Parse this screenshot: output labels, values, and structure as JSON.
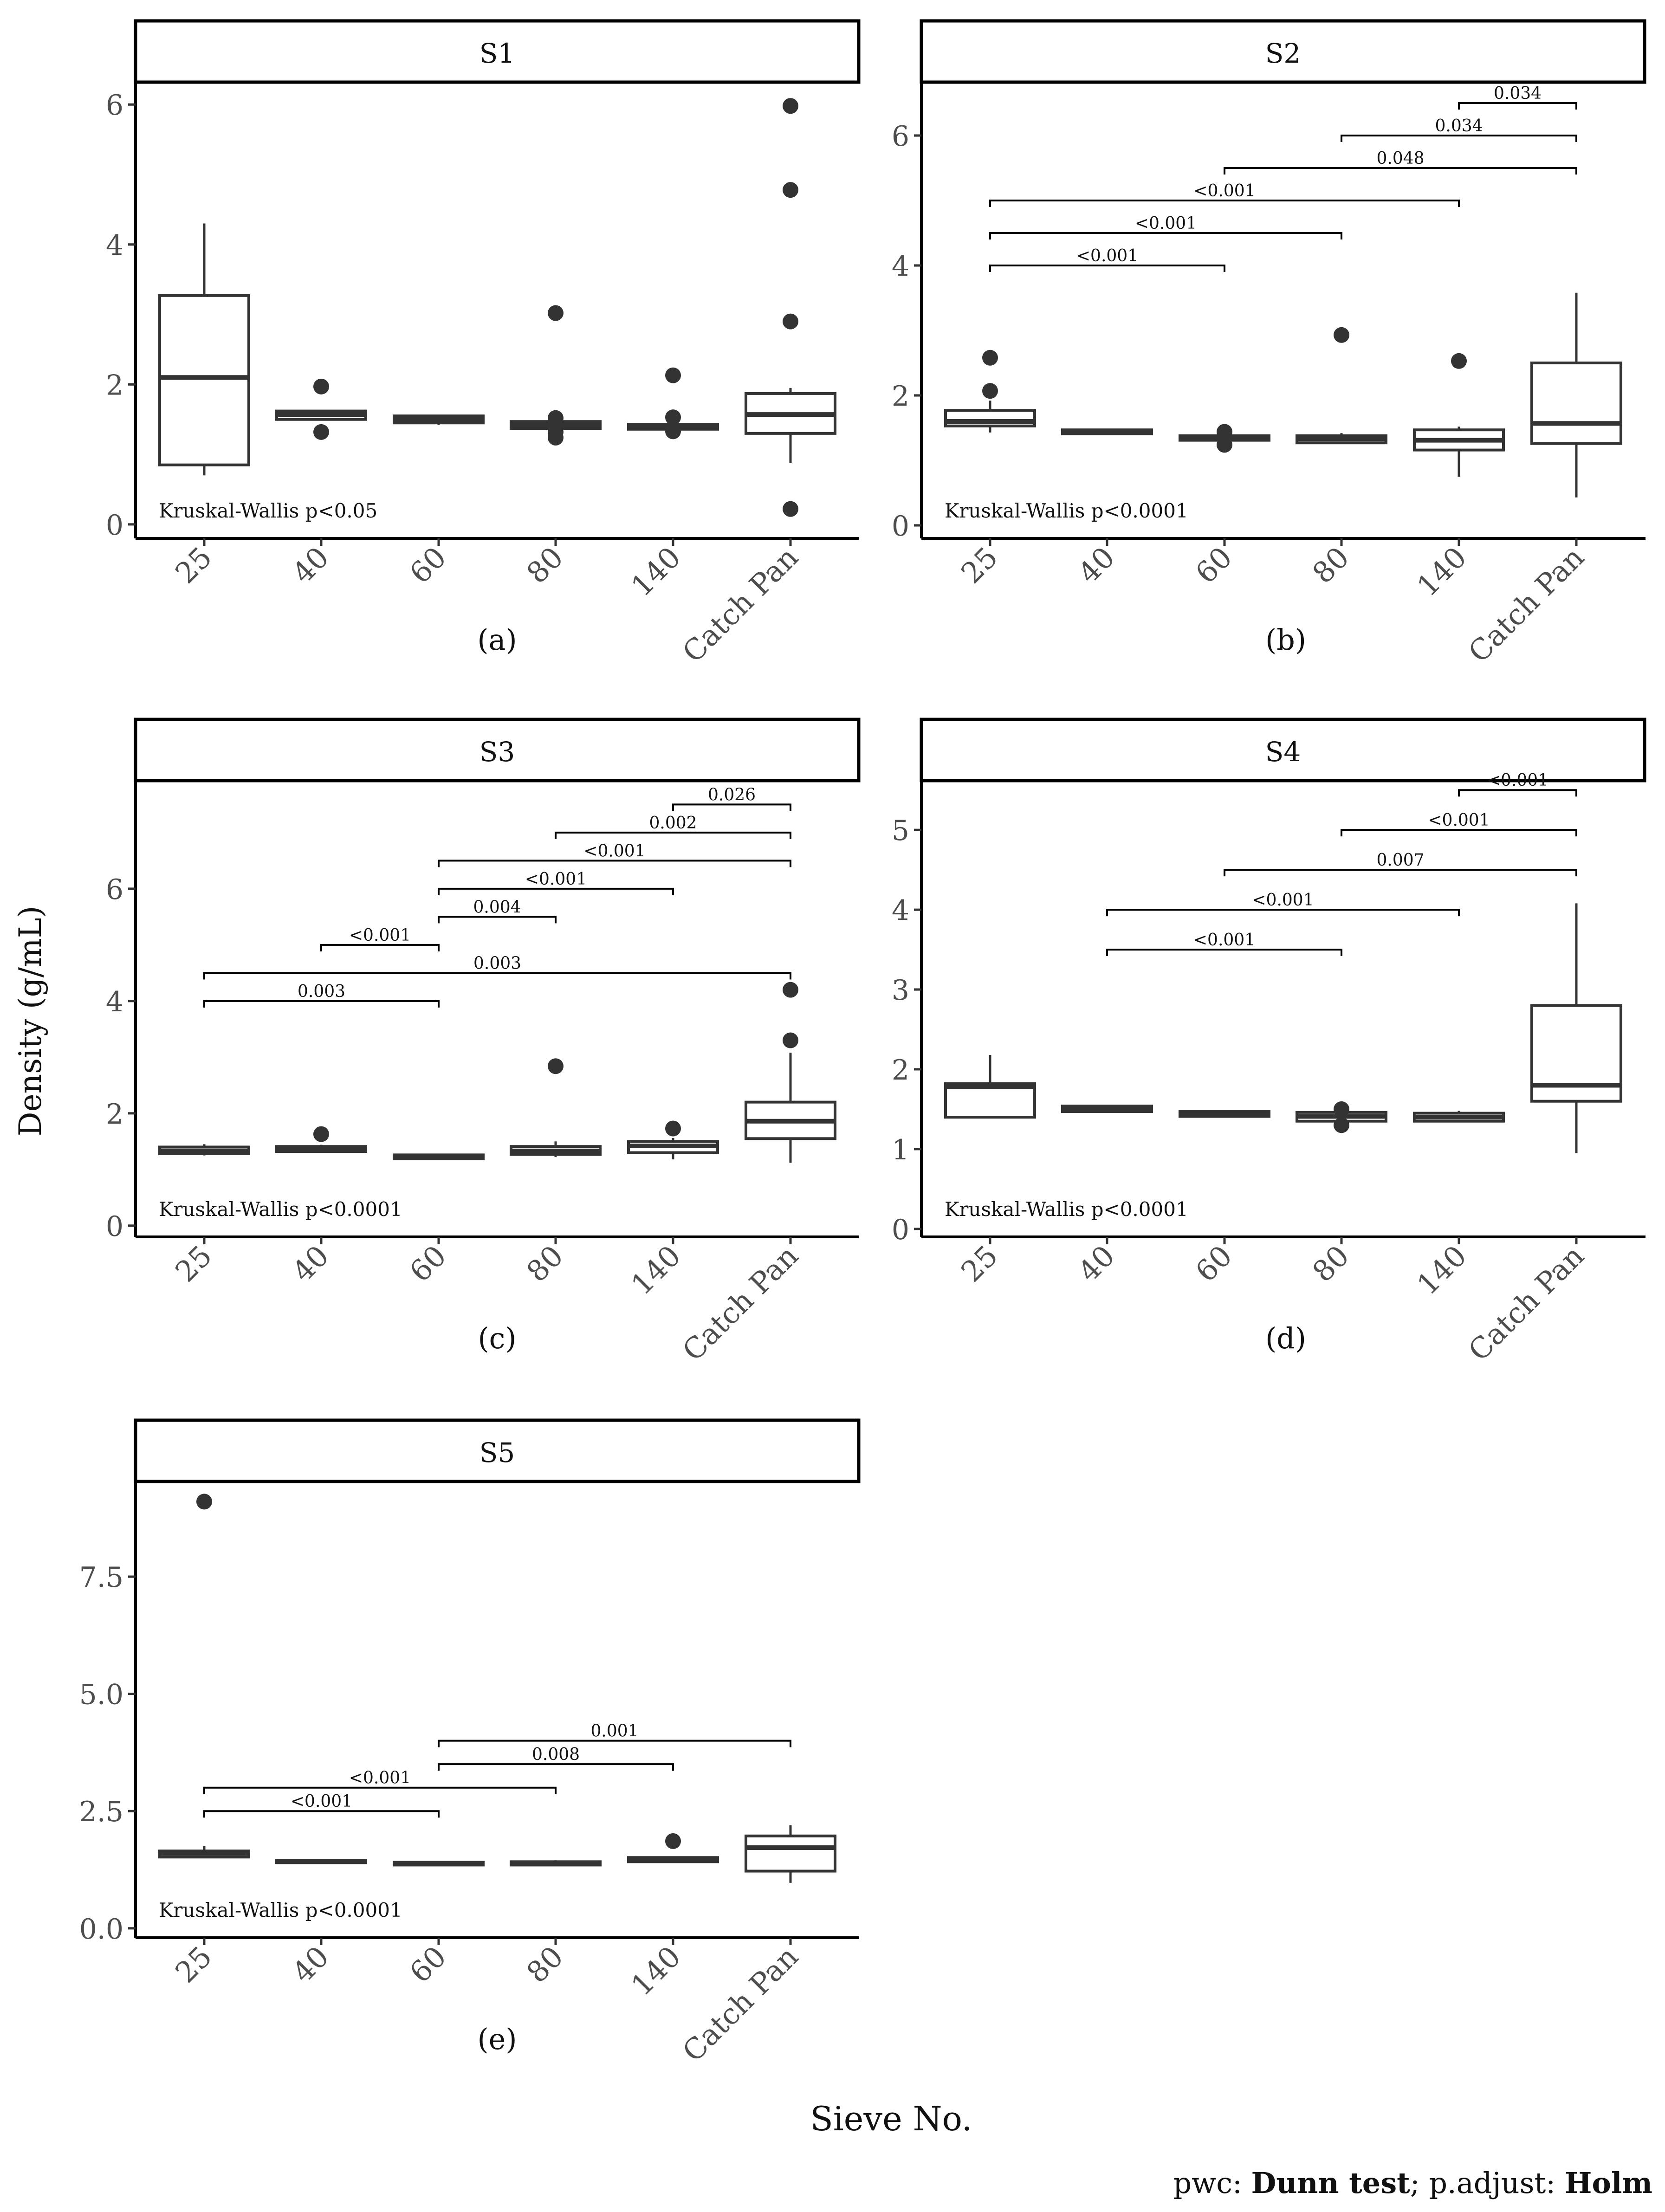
{
  "ylabel": "Density (g/mL)",
  "xlabel": "Sieve No.",
  "footnote": {
    "prefix": "pwc: ",
    "method": "Dunn test",
    "mid": "; p.adjust: ",
    "adjust": "Holm"
  },
  "chart_data": [
    {
      "type": "box",
      "title": "S1",
      "tag": "(a)",
      "kw": "Kruskal-Wallis p<0.05",
      "categories": [
        "25",
        "40",
        "60",
        "80",
        "140",
        "Catch Pan"
      ],
      "ylim": [
        -0.2,
        6.3
      ],
      "yticks": [
        0,
        2,
        4,
        6
      ],
      "ytick_labels": [
        "0",
        "2",
        "4",
        "6"
      ],
      "boxes": [
        {
          "lo": 0.7,
          "q1": 0.85,
          "med": 2.1,
          "q3": 3.27,
          "hi": 4.3,
          "out": []
        },
        {
          "lo": 1.5,
          "q1": 1.5,
          "med": 1.57,
          "q3": 1.62,
          "hi": 1.62,
          "out": [
            1.97,
            1.32
          ]
        },
        {
          "lo": 1.42,
          "q1": 1.45,
          "med": 1.5,
          "q3": 1.55,
          "hi": 1.55,
          "out": []
        },
        {
          "lo": 1.33,
          "q1": 1.37,
          "med": 1.42,
          "q3": 1.47,
          "hi": 1.52,
          "out": [
            3.02,
            1.52,
            1.42,
            1.32,
            1.24
          ]
        },
        {
          "lo": 1.33,
          "q1": 1.36,
          "med": 1.4,
          "q3": 1.43,
          "hi": 1.45,
          "out": [
            2.13,
            1.53,
            1.33
          ]
        },
        {
          "lo": 0.88,
          "q1": 1.3,
          "med": 1.57,
          "q3": 1.87,
          "hi": 1.95,
          "out": [
            5.98,
            4.78,
            2.9,
            0.22
          ]
        }
      ],
      "brackets": []
    },
    {
      "type": "box",
      "title": "S2",
      "tag": "(b)",
      "kw": "Kruskal-Wallis p<0.0001",
      "categories": [
        "25",
        "40",
        "60",
        "80",
        "140",
        "Catch Pan"
      ],
      "ylim": [
        -0.2,
        6.8
      ],
      "yticks": [
        0,
        2,
        4,
        6
      ],
      "ytick_labels": [
        "0",
        "2",
        "4",
        "6"
      ],
      "boxes": [
        {
          "lo": 1.43,
          "q1": 1.53,
          "med": 1.6,
          "q3": 1.77,
          "hi": 1.92,
          "out": [
            2.58,
            2.07
          ]
        },
        {
          "lo": 1.41,
          "q1": 1.41,
          "med": 1.44,
          "q3": 1.47,
          "hi": 1.47,
          "out": []
        },
        {
          "lo": 1.28,
          "q1": 1.31,
          "med": 1.35,
          "q3": 1.38,
          "hi": 1.41,
          "out": [
            1.44,
            1.24
          ]
        },
        {
          "lo": 1.26,
          "q1": 1.27,
          "med": 1.33,
          "q3": 1.38,
          "hi": 1.42,
          "out": [
            2.93
          ]
        },
        {
          "lo": 0.75,
          "q1": 1.16,
          "med": 1.31,
          "q3": 1.47,
          "hi": 1.52,
          "out": [
            2.53
          ]
        },
        {
          "lo": 0.43,
          "q1": 1.26,
          "med": 1.57,
          "q3": 2.5,
          "hi": 3.58,
          "out": []
        }
      ],
      "brackets": [
        {
          "from": 0,
          "to": 2,
          "y": 4.0,
          "label": "<0.001"
        },
        {
          "from": 0,
          "to": 3,
          "y": 4.5,
          "label": "<0.001"
        },
        {
          "from": 0,
          "to": 4,
          "y": 5.0,
          "label": "<0.001"
        },
        {
          "from": 2,
          "to": 5,
          "y": 5.5,
          "label": "0.048"
        },
        {
          "from": 3,
          "to": 5,
          "y": 6.0,
          "label": "0.034"
        },
        {
          "from": 4,
          "to": 5,
          "y": 6.5,
          "label": "0.034"
        }
      ]
    },
    {
      "type": "box",
      "title": "S3",
      "tag": "(c)",
      "kw": "Kruskal-Wallis p<0.0001",
      "categories": [
        "25",
        "40",
        "60",
        "80",
        "140",
        "Catch Pan"
      ],
      "ylim": [
        -0.2,
        7.9
      ],
      "yticks": [
        0,
        2,
        4,
        6
      ],
      "ytick_labels": [
        "0",
        "2",
        "4",
        "6"
      ],
      "boxes": [
        {
          "lo": 1.25,
          "q1": 1.28,
          "med": 1.33,
          "q3": 1.4,
          "hi": 1.45,
          "out": []
        },
        {
          "lo": 1.3,
          "q1": 1.32,
          "med": 1.36,
          "q3": 1.41,
          "hi": 1.44,
          "out": [
            1.63
          ]
        },
        {
          "lo": 1.17,
          "q1": 1.19,
          "med": 1.22,
          "q3": 1.26,
          "hi": 1.28,
          "out": []
        },
        {
          "lo": 1.22,
          "q1": 1.27,
          "med": 1.33,
          "q3": 1.41,
          "hi": 1.5,
          "out": [
            2.84
          ]
        },
        {
          "lo": 1.18,
          "q1": 1.3,
          "med": 1.42,
          "q3": 1.5,
          "hi": 1.56,
          "out": [
            1.73
          ]
        },
        {
          "lo": 1.12,
          "q1": 1.55,
          "med": 1.86,
          "q3": 2.2,
          "hi": 3.08,
          "out": [
            4.2,
            3.3
          ]
        }
      ],
      "brackets": [
        {
          "from": 0,
          "to": 2,
          "y": 4.0,
          "label": "0.003"
        },
        {
          "from": 0,
          "to": 5,
          "y": 4.5,
          "label": "0.003"
        },
        {
          "from": 1,
          "to": 2,
          "y": 5.0,
          "label": "<0.001"
        },
        {
          "from": 2,
          "to": 3,
          "y": 5.5,
          "label": "0.004"
        },
        {
          "from": 2,
          "to": 4,
          "y": 6.0,
          "label": "<0.001"
        },
        {
          "from": 2,
          "to": 5,
          "y": 6.5,
          "label": "<0.001"
        },
        {
          "from": 3,
          "to": 5,
          "y": 7.0,
          "label": "0.002"
        },
        {
          "from": 4,
          "to": 5,
          "y": 7.5,
          "label": "0.026"
        }
      ]
    },
    {
      "type": "box",
      "title": "S4",
      "tag": "(d)",
      "kw": "Kruskal-Wallis p<0.0001",
      "categories": [
        "25",
        "40",
        "60",
        "80",
        "140",
        "Catch Pan"
      ],
      "ylim": [
        -0.1,
        5.6
      ],
      "yticks": [
        0,
        1,
        2,
        3,
        4,
        5
      ],
      "ytick_labels": [
        "0",
        "1",
        "2",
        "3",
        "4",
        "5"
      ],
      "boxes": [
        {
          "lo": 1.4,
          "q1": 1.4,
          "med": 1.78,
          "q3": 1.82,
          "hi": 2.18,
          "out": []
        },
        {
          "lo": 1.46,
          "q1": 1.47,
          "med": 1.5,
          "q3": 1.54,
          "hi": 1.55,
          "out": []
        },
        {
          "lo": 1.4,
          "q1": 1.41,
          "med": 1.44,
          "q3": 1.47,
          "hi": 1.48,
          "out": []
        },
        {
          "lo": 1.33,
          "q1": 1.35,
          "med": 1.41,
          "q3": 1.46,
          "hi": 1.5,
          "out": [
            1.5,
            1.3
          ]
        },
        {
          "lo": 1.34,
          "q1": 1.35,
          "med": 1.4,
          "q3": 1.45,
          "hi": 1.48,
          "out": []
        },
        {
          "lo": 0.95,
          "q1": 1.6,
          "med": 1.8,
          "q3": 2.8,
          "hi": 4.08,
          "out": []
        }
      ],
      "brackets": [
        {
          "from": 1,
          "to": 3,
          "y": 3.5,
          "label": "<0.001"
        },
        {
          "from": 1,
          "to": 4,
          "y": 4.0,
          "label": "<0.001"
        },
        {
          "from": 2,
          "to": 5,
          "y": 4.5,
          "label": "0.007"
        },
        {
          "from": 3,
          "to": 5,
          "y": 5.0,
          "label": "<0.001"
        },
        {
          "from": 4,
          "to": 5,
          "y": 5.5,
          "label": "<0.001"
        }
      ]
    },
    {
      "type": "box",
      "title": "S5",
      "tag": "(e)",
      "kw": "Kruskal-Wallis p<0.0001",
      "categories": [
        "25",
        "40",
        "60",
        "80",
        "140",
        "Catch Pan"
      ],
      "ylim": [
        -0.2,
        9.5
      ],
      "yticks": [
        0,
        2.5,
        5,
        7.5
      ],
      "ytick_labels": [
        "0.0",
        "2.5",
        "5.0",
        "7.5"
      ],
      "boxes": [
        {
          "lo": 1.5,
          "q1": 1.52,
          "med": 1.6,
          "q3": 1.65,
          "hi": 1.75,
          "out": [
            9.1
          ]
        },
        {
          "lo": 1.39,
          "q1": 1.4,
          "med": 1.42,
          "q3": 1.45,
          "hi": 1.46,
          "out": []
        },
        {
          "lo": 1.34,
          "q1": 1.35,
          "med": 1.38,
          "q3": 1.41,
          "hi": 1.42,
          "out": []
        },
        {
          "lo": 1.34,
          "q1": 1.35,
          "med": 1.39,
          "q3": 1.42,
          "hi": 1.45,
          "out": []
        },
        {
          "lo": 1.4,
          "q1": 1.42,
          "med": 1.47,
          "q3": 1.51,
          "hi": 1.53,
          "out": [
            1.86
          ]
        },
        {
          "lo": 0.97,
          "q1": 1.22,
          "med": 1.72,
          "q3": 1.97,
          "hi": 2.2,
          "out": []
        }
      ],
      "brackets": [
        {
          "from": 0,
          "to": 2,
          "y": 2.5,
          "label": "<0.001"
        },
        {
          "from": 0,
          "to": 3,
          "y": 3.0,
          "label": "<0.001"
        },
        {
          "from": 2,
          "to": 4,
          "y": 3.5,
          "label": "0.008"
        },
        {
          "from": 2,
          "to": 5,
          "y": 4.0,
          "label": "0.001"
        }
      ]
    }
  ]
}
